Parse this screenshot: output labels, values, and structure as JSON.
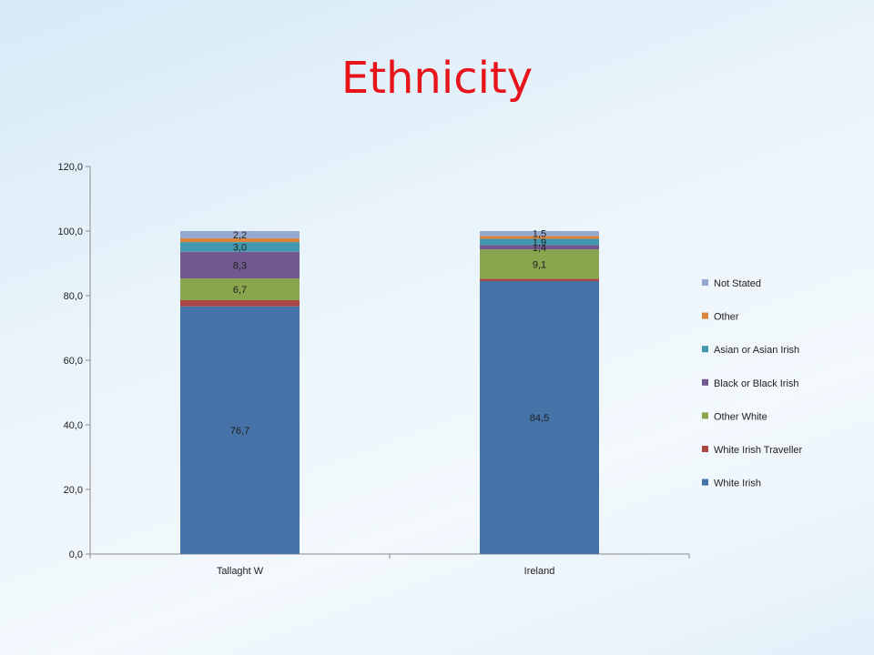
{
  "slide": {
    "title": "Ethnicity"
  },
  "chart_data": {
    "type": "bar",
    "stacked": true,
    "categories": [
      "Tallaght W",
      "Ireland"
    ],
    "ylim": [
      0,
      120
    ],
    "yticks": [
      "0,0",
      "20,0",
      "40,0",
      "60,0",
      "80,0",
      "100,0",
      "120,0"
    ],
    "grid": false,
    "legend_position": "right",
    "series": [
      {
        "name": "White Irish",
        "values": [
          76.7,
          84.5
        ],
        "labels": [
          "76,7",
          "84,5"
        ],
        "color": "#4572a7"
      },
      {
        "name": "White Irish Traveller",
        "values": [
          1.9,
          0.7
        ],
        "labels": [
          "",
          ""
        ],
        "color": "#aa4643"
      },
      {
        "name": "Other White",
        "values": [
          6.7,
          9.1
        ],
        "labels": [
          "6,7",
          "9,1"
        ],
        "color": "#89a54e"
      },
      {
        "name": "Black or Black Irish",
        "values": [
          8.3,
          1.4
        ],
        "labels": [
          "8,3",
          "1,4"
        ],
        "color": "#71588f"
      },
      {
        "name": "Asian or Asian Irish",
        "values": [
          3.0,
          1.9
        ],
        "labels": [
          "3,0",
          "1,9"
        ],
        "color": "#4198af"
      },
      {
        "name": "Other",
        "values": [
          1.2,
          0.9
        ],
        "labels": [
          "",
          ""
        ],
        "color": "#db843d"
      },
      {
        "name": "Not Stated",
        "values": [
          2.2,
          1.5
        ],
        "labels": [
          "2,2",
          "1,5"
        ],
        "color": "#93a9cf"
      }
    ]
  }
}
